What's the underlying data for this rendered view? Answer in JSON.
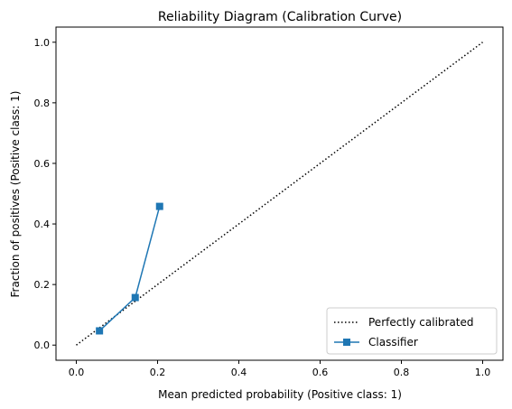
{
  "chart_data": {
    "type": "line",
    "title": "Reliability Diagram (Calibration Curve)",
    "xlabel": "Mean predicted probability (Positive class: 1)",
    "ylabel": "Fraction of positives (Positive class: 1)",
    "xlim": [
      -0.05,
      1.05
    ],
    "ylim": [
      -0.05,
      1.05
    ],
    "xticks": [
      "0.0",
      "0.2",
      "0.4",
      "0.6",
      "0.8",
      "1.0"
    ],
    "yticks": [
      "0.0",
      "0.2",
      "0.4",
      "0.6",
      "0.8",
      "1.0"
    ],
    "grid": false,
    "legend_position": "lower-right",
    "series": [
      {
        "name": "Perfectly calibrated",
        "style": "dotted",
        "color": "#000000",
        "x": [
          0.0,
          1.0
        ],
        "y": [
          0.0,
          1.0
        ]
      },
      {
        "name": "Classifier",
        "style": "solid",
        "marker": "square",
        "color": "#1f77b4",
        "x": [
          0.057,
          0.145,
          0.205
        ],
        "y": [
          0.047,
          0.157,
          0.458
        ]
      }
    ]
  }
}
